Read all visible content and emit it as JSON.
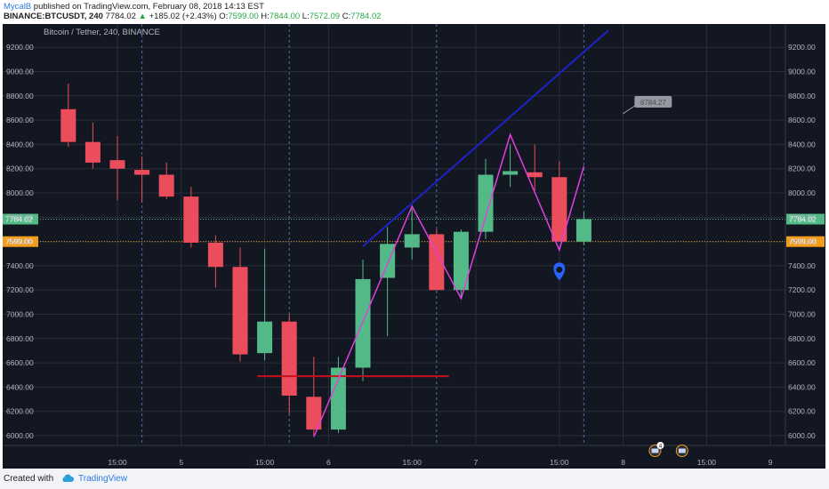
{
  "header": {
    "author": "MycalB",
    "published_text": "published on TradingView.com, February 08, 2018 14:13 EST",
    "symbol": "BINANCE:BTCUSDT, 240",
    "last": "7784.02",
    "arrow": "▲",
    "change": "+185.02 (+2.43%)",
    "o_label": "O:",
    "o_value": "7599.00",
    "h_label": "H:",
    "h_value": "7844.00",
    "l_label": "L:",
    "l_value": "7572.09",
    "c_label": "C:",
    "c_value": "7784.02"
  },
  "footer": {
    "created_with": "Created with",
    "brand": "TradingView"
  },
  "colors": {
    "background": "#131722",
    "grid": "#2a2e39",
    "up": "#53b987",
    "down": "#eb4d5c",
    "axis_text": "#b2b5be",
    "zigzag": "#e040e0",
    "trendline": "#1e22c8",
    "support": "#c8101b",
    "price_green": "#53b987",
    "price_orange": "#f59c1b"
  },
  "chart_data": {
    "type": "candlestick",
    "title": "Bitcoin / Tether, 240, BINANCE",
    "y_range": [
      5850,
      9400
    ],
    "y_ticks": [
      "9200.00",
      "9000.00",
      "8800.00",
      "8600.00",
      "8400.00",
      "8200.00",
      "8000.00",
      "7800.00",
      "7600.00",
      "7400.00",
      "7200.00",
      "7000.00",
      "6800.00",
      "6600.00",
      "6400.00",
      "6200.00",
      "6000.00"
    ],
    "x_tick_labels": [
      {
        "label": "15:00",
        "slot": 2.5
      },
      {
        "label": "5",
        "slot": 5.1
      },
      {
        "label": "15:00",
        "slot": 8.5
      },
      {
        "label": "6",
        "slot": 11.1
      },
      {
        "label": "15:00",
        "slot": 14.5
      },
      {
        "label": "7",
        "slot": 17.1
      },
      {
        "label": "15:00",
        "slot": 20.5
      },
      {
        "label": "8",
        "slot": 23.1
      },
      {
        "label": "15:00",
        "slot": 26.5
      },
      {
        "label": "9",
        "slot": 29.1
      }
    ],
    "session_breaks": [
      3.5,
      9.5,
      15.5,
      21.5
    ],
    "candles": [
      {
        "o": 8690,
        "h": 8900,
        "l": 8380,
        "c": 8420
      },
      {
        "o": 8420,
        "h": 8580,
        "l": 8200,
        "c": 8250
      },
      {
        "o": 8270,
        "h": 8470,
        "l": 7940,
        "c": 8200
      },
      {
        "o": 8190,
        "h": 8300,
        "l": 7920,
        "c": 8150
      },
      {
        "o": 8150,
        "h": 8250,
        "l": 7950,
        "c": 7970
      },
      {
        "o": 7970,
        "h": 8050,
        "l": 7550,
        "c": 7590
      },
      {
        "o": 7590,
        "h": 7650,
        "l": 7220,
        "c": 7390
      },
      {
        "o": 7390,
        "h": 7550,
        "l": 6610,
        "c": 6670
      },
      {
        "o": 6680,
        "h": 7540,
        "l": 6620,
        "c": 6940
      },
      {
        "o": 6940,
        "h": 7000,
        "l": 6180,
        "c": 6330
      },
      {
        "o": 6320,
        "h": 6650,
        "l": 6000,
        "c": 6050
      },
      {
        "o": 6050,
        "h": 6650,
        "l": 6020,
        "c": 6560
      },
      {
        "o": 6560,
        "h": 7450,
        "l": 6450,
        "c": 7290
      },
      {
        "o": 7300,
        "h": 7720,
        "l": 6820,
        "c": 7580
      },
      {
        "o": 7550,
        "h": 7870,
        "l": 7450,
        "c": 7660
      },
      {
        "o": 7660,
        "h": 7700,
        "l": 7200,
        "c": 7200
      },
      {
        "o": 7200,
        "h": 7700,
        "l": 7130,
        "c": 7680
      },
      {
        "o": 7680,
        "h": 8280,
        "l": 7620,
        "c": 8150
      },
      {
        "o": 8150,
        "h": 8400,
        "l": 8050,
        "c": 8180
      },
      {
        "o": 8170,
        "h": 8400,
        "l": 8020,
        "c": 8130
      },
      {
        "o": 8130,
        "h": 8260,
        "l": 7600,
        "c": 7600
      },
      {
        "o": 7599,
        "h": 7844,
        "l": 7572.09,
        "c": 7784.02
      }
    ],
    "zigzag": [
      {
        "slot": 10.5,
        "y": 5990
      },
      {
        "slot": 14.5,
        "y": 7890
      },
      {
        "slot": 16.5,
        "y": 7130
      },
      {
        "slot": 18.5,
        "y": 8480
      },
      {
        "slot": 20.5,
        "y": 7530
      },
      {
        "slot": 21.5,
        "y": 8220
      }
    ],
    "trendline": [
      {
        "slot": 12.5,
        "y": 7560
      },
      {
        "slot": 22.5,
        "y": 9340
      }
    ],
    "support_line": {
      "from_slot": 8.2,
      "to_slot": 16.0,
      "y": 6490
    },
    "price_lines": [
      {
        "value": 7784.02,
        "label": "7784.02",
        "color": "price_green"
      },
      {
        "value": 7599.0,
        "label": "7599.00",
        "color": "price_orange"
      }
    ],
    "callout": {
      "text": "8784.27",
      "slot": 23.2,
      "y": 8784.27
    },
    "marker": {
      "slot": 20.5,
      "y": 7360
    },
    "event_badge_count": "4"
  }
}
